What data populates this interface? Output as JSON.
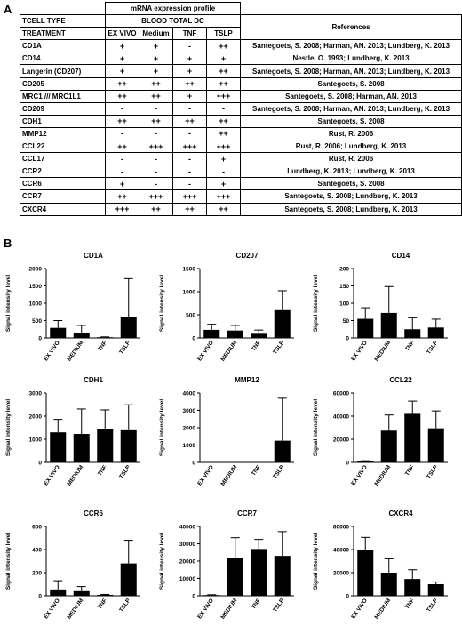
{
  "panel_labels": {
    "a": "A",
    "b": "B"
  },
  "table": {
    "title": "mRNA expression profile",
    "row1": {
      "label": "TCELL TYPE",
      "group": "BLOOD TOTAL DC",
      "refs": "References"
    },
    "row2": {
      "label": "TREATMENT",
      "cols": [
        "EX VIVO",
        "Medium",
        "TNF",
        "TSLP"
      ]
    },
    "rows": [
      {
        "gene": "CD1A",
        "vals": [
          "+",
          "+",
          "-",
          "++"
        ],
        "ref": "Santegoets, S. 2008; Harman, AN. 2013; Lundberg, K. 2013"
      },
      {
        "gene": "CD14",
        "vals": [
          "+",
          "+",
          "+",
          "+"
        ],
        "ref": "Nestle, O. 1993; Lundberg, K. 2013"
      },
      {
        "gene": "Langerin (CD207)",
        "vals": [
          "+",
          "+",
          "+",
          "++"
        ],
        "ref": "Santegoets, S. 2008; Harman, AN. 2013; Lundberg, K. 2013"
      },
      {
        "gene": "CD205",
        "vals": [
          "++",
          "++",
          "++",
          "++"
        ],
        "ref": "Santegoets, S. 2008"
      },
      {
        "gene": "MRC1 /// MRC1L1",
        "vals": [
          "++",
          "++",
          "+",
          "+++"
        ],
        "ref": "Santegoets, S. 2008; Harman, AN. 2013"
      },
      {
        "gene": "CD209",
        "vals": [
          "-",
          "-",
          "-",
          "-"
        ],
        "ref": "Santegoets, S. 2008; Harman, AN. 2013; Lundberg, K. 2013"
      },
      {
        "gene": "CDH1",
        "vals": [
          "++",
          "++",
          "++",
          "++"
        ],
        "ref": "Santegoets, S. 2008"
      },
      {
        "gene": "MMP12",
        "vals": [
          "-",
          "-",
          "-",
          "++"
        ],
        "ref": "Rust, R. 2006"
      },
      {
        "gene": "CCL22",
        "vals": [
          "++",
          "+++",
          "+++",
          "+++"
        ],
        "ref": "Rust, R. 2006; Lundberg, K. 2013"
      },
      {
        "gene": "CCL17",
        "vals": [
          "-",
          "-",
          "-",
          "+"
        ],
        "ref": "Rust, R. 2006"
      },
      {
        "gene": "CCR2",
        "vals": [
          "-",
          "-",
          "-",
          "-"
        ],
        "ref": "Lundberg, K. 2013; Lundberg, K. 2013"
      },
      {
        "gene": "CCR6",
        "vals": [
          "+",
          "-",
          "-",
          "+"
        ],
        "ref": "Santegoets, S. 2008"
      },
      {
        "gene": "CCR7",
        "vals": [
          "++",
          "+++",
          "+++",
          "+++"
        ],
        "ref": "Santegoets, S. 2008; Lundberg, K. 2013"
      },
      {
        "gene": "CXCR4",
        "vals": [
          "+++",
          "++",
          "++",
          "++"
        ],
        "ref": "Santegoets, S. 2008; Lundberg, K. 2013"
      }
    ]
  },
  "chart_data": [
    {
      "type": "bar",
      "title": "CD1A",
      "ylabel": "Signal intensity level",
      "categories": [
        "EX VIVO",
        "MEDIUM",
        "TNF",
        "TSLP"
      ],
      "values": [
        290,
        150,
        20,
        590
      ],
      "errors": [
        210,
        210,
        10,
        1120
      ],
      "ylim": [
        0,
        2000
      ],
      "yticks": [
        "0",
        "500",
        "1000",
        "1500",
        "2000"
      ]
    },
    {
      "type": "bar",
      "title": "CD207",
      "ylabel": "Signal intensity level",
      "categories": [
        "EX VIVO",
        "MEDIUM",
        "TNF",
        "TSLP"
      ],
      "values": [
        175,
        160,
        90,
        600
      ],
      "errors": [
        120,
        110,
        80,
        420
      ],
      "ylim": [
        0,
        1500
      ],
      "yticks": [
        "0",
        "500",
        "1000",
        "1500"
      ]
    },
    {
      "type": "bar",
      "title": "CD14",
      "ylabel": "Signal intensity level",
      "categories": [
        "EX VIVO",
        "MEDIUM",
        "TNF",
        "TSLP"
      ],
      "values": [
        55,
        72,
        25,
        30
      ],
      "errors": [
        32,
        76,
        33,
        24
      ],
      "ylim": [
        0,
        200
      ],
      "yticks": [
        "0",
        "50",
        "100",
        "150",
        "200"
      ]
    },
    {
      "type": "bar",
      "title": "CDH1",
      "ylabel": "Signal intensity level",
      "categories": [
        "EX VIVO",
        "MEDIUM",
        "TNF",
        "TSLP"
      ],
      "values": [
        1300,
        1230,
        1450,
        1390
      ],
      "errors": [
        560,
        1080,
        820,
        1100
      ],
      "ylim": [
        0,
        3000
      ],
      "yticks": [
        "0",
        "1000",
        "2000",
        "3000"
      ]
    },
    {
      "type": "bar",
      "title": "MMP12",
      "ylabel": "Signal intensity level",
      "categories": [
        "EX VIVO",
        "MEDIUM",
        "TNF",
        "TSLP"
      ],
      "values": [
        0,
        0,
        0,
        1250
      ],
      "errors": [
        0,
        0,
        0,
        2450
      ],
      "ylim": [
        0,
        4000
      ],
      "yticks": [
        "0",
        "1000",
        "2000",
        "3000",
        "4000"
      ]
    },
    {
      "type": "bar",
      "title": "CCL22",
      "ylabel": "Signal intensity level",
      "categories": [
        "EX VIVO",
        "MEDIUM",
        "TNF",
        "TSLP"
      ],
      "values": [
        800,
        27500,
        42000,
        29500
      ],
      "errors": [
        600,
        13500,
        11000,
        15000
      ],
      "ylim": [
        0,
        60000
      ],
      "yticks": [
        "0",
        "20000",
        "40000",
        "60000"
      ]
    },
    {
      "type": "bar",
      "title": "CCR6",
      "ylabel": "Signal intensity level",
      "categories": [
        "EX VIVO",
        "MEDIUM",
        "TNF",
        "TSLP"
      ],
      "values": [
        55,
        40,
        8,
        280
      ],
      "errors": [
        75,
        40,
        4,
        200
      ],
      "ylim": [
        0,
        600
      ],
      "yticks": [
        "0",
        "200",
        "400",
        "600"
      ]
    },
    {
      "type": "bar",
      "title": "CCR7",
      "ylabel": "Signal intensity level",
      "categories": [
        "EX VIVO",
        "MEDIUM",
        "TNF",
        "TSLP"
      ],
      "values": [
        400,
        22000,
        27000,
        23000
      ],
      "errors": [
        200,
        11500,
        5500,
        14000
      ],
      "ylim": [
        0,
        40000
      ],
      "yticks": [
        "0",
        "10000",
        "20000",
        "30000",
        "40000"
      ]
    },
    {
      "type": "bar",
      "title": "CXCR4",
      "ylabel": "Signal intensity level",
      "categories": [
        "EX VIVO",
        "MEDIUM",
        "TNF",
        "TSLP"
      ],
      "values": [
        40000,
        20000,
        14500,
        10000
      ],
      "errors": [
        10500,
        12000,
        8000,
        2000
      ],
      "ylim": [
        0,
        60000
      ],
      "yticks": [
        "0",
        "20000",
        "40000",
        "60000"
      ]
    }
  ]
}
